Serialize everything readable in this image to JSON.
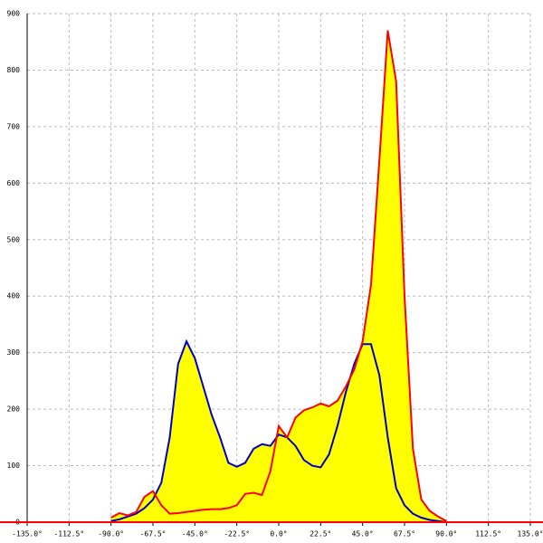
{
  "chart_data": {
    "type": "area",
    "x": [
      -90,
      -85.5,
      -81,
      -76.5,
      -72,
      -67.5,
      -63,
      -58.5,
      -54,
      -49.5,
      -45,
      -40.5,
      -36,
      -31.5,
      -27,
      -22.5,
      -18,
      -13.5,
      -9,
      -4.5,
      0,
      4.5,
      9,
      13.5,
      18,
      22.5,
      27,
      31.5,
      36,
      40.5,
      45,
      49.5,
      54,
      58.5,
      63,
      67.5,
      72,
      76.5,
      81,
      85.5,
      90
    ],
    "series": [
      {
        "color": "#0000cc",
        "fill": "#ffff00",
        "values": [
          2,
          5,
          10,
          15,
          25,
          40,
          70,
          150,
          280,
          320,
          290,
          240,
          190,
          150,
          105,
          98,
          105,
          130,
          138,
          135,
          155,
          150,
          135,
          110,
          100,
          97,
          120,
          170,
          230,
          280,
          315,
          315,
          260,
          150,
          60,
          30,
          15,
          8,
          4,
          2,
          0
        ]
      },
      {
        "color": "#ff0000",
        "fill": "#ffff00",
        "values": [
          8,
          16,
          12,
          18,
          45,
          55,
          30,
          15,
          16,
          18,
          20,
          22,
          23,
          23,
          25,
          30,
          50,
          52,
          48,
          90,
          170,
          150,
          185,
          198,
          203,
          210,
          205,
          215,
          240,
          270,
          320,
          420,
          640,
          870,
          780,
          400,
          130,
          40,
          20,
          10,
          2
        ]
      }
    ],
    "xlim": [
      -135,
      135
    ],
    "xticks": [
      {
        "value": -135,
        "label": "-135.0°"
      },
      {
        "value": -112.5,
        "label": "-112.5°"
      },
      {
        "value": -90,
        "label": "-90.0°"
      },
      {
        "value": -67.5,
        "label": "-67.5°"
      },
      {
        "value": -45,
        "label": "-45.0°"
      },
      {
        "value": -22.5,
        "label": "-22.5°"
      },
      {
        "value": 0,
        "label": "0.0°"
      },
      {
        "value": 22.5,
        "label": "22.5°"
      },
      {
        "value": 45,
        "label": "45.0°"
      },
      {
        "value": 67.5,
        "label": "67.5°"
      },
      {
        "value": 90,
        "label": "90.0°"
      },
      {
        "value": 112.5,
        "label": "112.5°"
      },
      {
        "value": 135,
        "label": "135.0°"
      }
    ],
    "ylim": [
      0,
      900
    ],
    "yticks": [
      0,
      100,
      200,
      300,
      400,
      500,
      600,
      700,
      800,
      900
    ],
    "grid": true
  }
}
